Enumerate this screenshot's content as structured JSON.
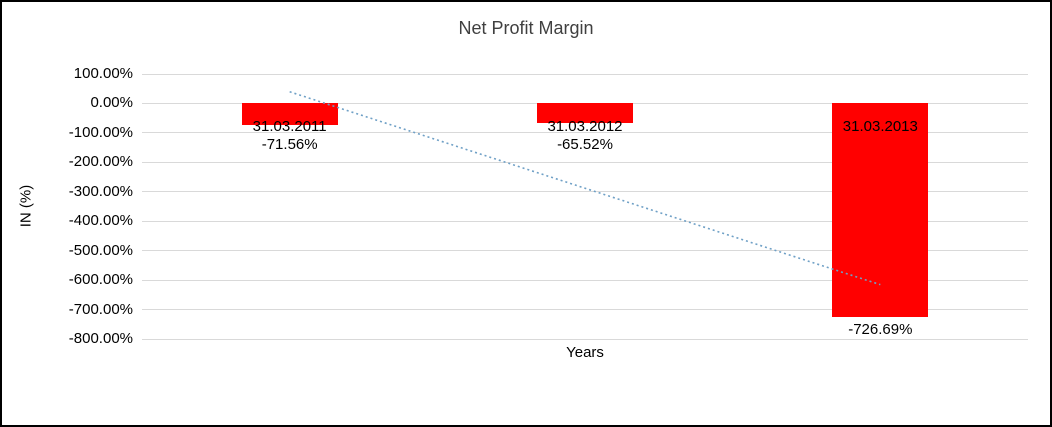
{
  "chart": {
    "title": "Net Profit Margin",
    "x_axis_label": "Years",
    "y_axis_label": "IN (%)"
  },
  "chart_data": {
    "type": "bar",
    "title": "Net Profit Margin",
    "xlabel": "Years",
    "ylabel": "IN (%)",
    "categories": [
      "31.03.2011",
      "31.03.2012",
      "31.03.2013"
    ],
    "values": [
      -71.56,
      -65.52,
      -726.69
    ],
    "data_labels": [
      "-71.56%",
      "-65.52%",
      "-726.69%"
    ],
    "ylim": [
      -800,
      100
    ],
    "y_ticks": [
      {
        "label": "100.00%",
        "value": 100
      },
      {
        "label": "0.00%",
        "value": 0
      },
      {
        "label": "-100.00%",
        "value": -100
      },
      {
        "label": "-200.00%",
        "value": -200
      },
      {
        "label": "-300.00%",
        "value": -300
      },
      {
        "label": "-400.00%",
        "value": -400
      },
      {
        "label": "-500.00%",
        "value": -500
      },
      {
        "label": "-600.00%",
        "value": -600
      },
      {
        "label": "-700.00%",
        "value": -700
      },
      {
        "label": "-800.00%",
        "value": -800
      }
    ],
    "grid": true,
    "legend": "none",
    "bar_color": "#FF0000",
    "gridline_color": "#D9D9D9",
    "trendline": {
      "style": "dotted",
      "color": "#6FA0C6",
      "start": {
        "x": 0,
        "value": 39.65
      },
      "end": {
        "x": 2,
        "value": -615.49
      }
    }
  }
}
